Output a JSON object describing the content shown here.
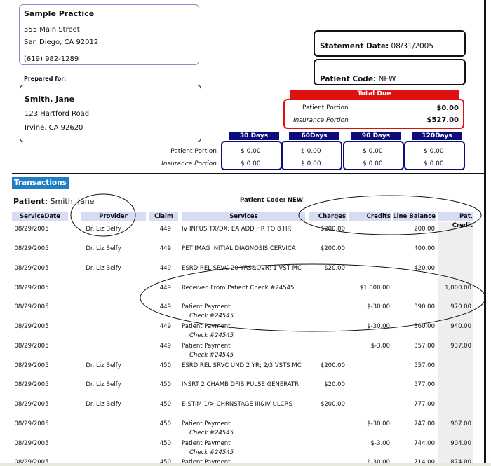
{
  "practice": {
    "name": "Sample Practice",
    "street": "555 Main Street",
    "city": "San Diego, CA 92012",
    "phone": "(619) 982-1289"
  },
  "prepared_for": {
    "label": "Prepared for:",
    "name": "Smith, Jane",
    "street": "123 Hartford Road",
    "city": "Irvine, CA 92620"
  },
  "statement": {
    "date_label": "Statement Date:",
    "date": "08/31/2005",
    "code_label": "Patient Code:",
    "code": "NEW"
  },
  "total_due": {
    "title": "Total Due",
    "patient_label": "Patient Portion",
    "patient_value": "$0.00",
    "insurance_label": "Insurance Portion",
    "insurance_value": "$527.00"
  },
  "aging": {
    "patient_label": "Patient Portion",
    "insurance_label": "Insurance Portion",
    "buckets": [
      {
        "label": "30 Days",
        "patient": "$ 0.00",
        "insurance": "$ 0.00"
      },
      {
        "label": "60Days",
        "patient": "$ 0.00",
        "insurance": "$ 0.00"
      },
      {
        "label": "90 Days",
        "patient": "$ 0.00",
        "insurance": "$ 0.00"
      },
      {
        "label": "120Days",
        "patient": "$ 0.00",
        "insurance": "$ 0.00"
      }
    ]
  },
  "transactions": {
    "tab": "Transactions",
    "patient_label": "Patient:",
    "patient_name": "Smith, Jane",
    "patient_code": "Patient Code: NEW",
    "columns": [
      "ServiceDate",
      "Provider",
      "Claim",
      "Services",
      "Charges",
      "Credits",
      "Line Balance",
      "Pat. Credit"
    ],
    "rows": [
      {
        "date": "08/29/2005",
        "provider": "Dr. Liz Belfy",
        "claim": "449",
        "service": "IV INFUS TX/DX; EA ADD HR TO 8 HR",
        "sub": "",
        "charges": "$200.00",
        "credits": "",
        "balance": "200.00",
        "pat_credit": ""
      },
      {
        "date": "08/29/2005",
        "provider": "Dr. Liz Belfy",
        "claim": "449",
        "service": "PET IMAG INITIAL DIAGNOSIS CERVICA",
        "sub": "",
        "charges": "$200.00",
        "credits": "",
        "balance": "400.00",
        "pat_credit": ""
      },
      {
        "date": "08/29/2005",
        "provider": "Dr. Liz Belfy",
        "claim": "449",
        "service": "ESRD REL SRVC 20 YRS&OVR; 1 VST MC",
        "sub": "",
        "charges": "$20.00",
        "credits": "",
        "balance": "420.00",
        "pat_credit": ""
      },
      {
        "date": "08/29/2005",
        "provider": "",
        "claim": "449",
        "service": "Received From Patient Check #24545",
        "sub": "",
        "charges": "",
        "credits": "$1,000.00",
        "balance": "",
        "pat_credit": "1,000.00"
      },
      {
        "date": "08/29/2005",
        "provider": "",
        "claim": "449",
        "service": "Patient Payment",
        "sub": "Check #24545",
        "charges": "",
        "credits": "$-30.00",
        "balance": "390.00",
        "pat_credit": "970.00"
      },
      {
        "date": "08/29/2005",
        "provider": "",
        "claim": "449",
        "service": "Patient Payment",
        "sub": "Check #24545",
        "charges": "",
        "credits": "$-30.00",
        "balance": "360.00",
        "pat_credit": "940.00"
      },
      {
        "date": "08/29/2005",
        "provider": "",
        "claim": "449",
        "service": "Patient Payment",
        "sub": "Check #24545",
        "charges": "",
        "credits": "$-3.00",
        "balance": "357.00",
        "pat_credit": "937.00"
      },
      {
        "date": "08/29/2005",
        "provider": "Dr. Liz Belfy",
        "claim": "450",
        "service": "ESRD REL SRVC UND 2 YR; 2/3 VSTS MC",
        "sub": "",
        "charges": "$200.00",
        "credits": "",
        "balance": "557.00",
        "pat_credit": ""
      },
      {
        "date": "08/29/2005",
        "provider": "Dr. Liz Belfy",
        "claim": "450",
        "service": "INSRT 2 CHAMB DFIB PULSE GENERATR",
        "sub": "",
        "charges": "$20.00",
        "credits": "",
        "balance": "577.00",
        "pat_credit": ""
      },
      {
        "date": "08/29/2005",
        "provider": "Dr. Liz Belfy",
        "claim": "450",
        "service": "E-STIM 1/> CHRNSTAGE III&IV ULCRS",
        "sub": "",
        "charges": "$200.00",
        "credits": "",
        "balance": "777.00",
        "pat_credit": ""
      },
      {
        "date": "08/29/2005",
        "provider": "",
        "claim": "450",
        "service": "Patient Payment",
        "sub": "Check #24545",
        "charges": "",
        "credits": "$-30.00",
        "balance": "747.00",
        "pat_credit": "907.00"
      },
      {
        "date": "08/29/2005",
        "provider": "",
        "claim": "450",
        "service": "Patient Payment",
        "sub": "Check #24545",
        "charges": "",
        "credits": "$-3.00",
        "balance": "744.00",
        "pat_credit": "904.00"
      },
      {
        "date": "08/29/2005",
        "provider": "",
        "claim": "450",
        "service": "Patient Payment",
        "sub": "",
        "charges": "",
        "credits": "$-30.00",
        "balance": "714.00",
        "pat_credit": "874.00"
      }
    ]
  },
  "colors": {
    "navy": "#0b0b7a",
    "red": "#e01010",
    "header_blue": "#d7dcf5",
    "tab_blue": "#1e7fc4"
  }
}
